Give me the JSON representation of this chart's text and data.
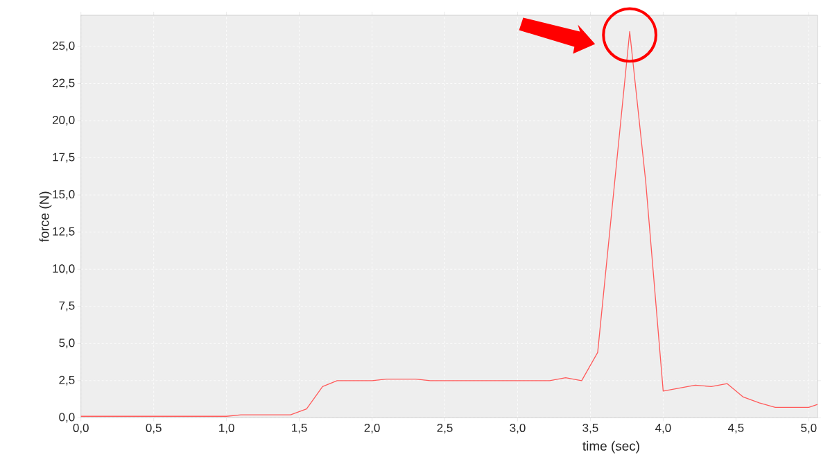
{
  "chart_data": {
    "type": "line",
    "xlabel": "time (sec)",
    "ylabel": "force (N)",
    "x": [
      0.0,
      1.0,
      1.1,
      1.44,
      1.55,
      1.66,
      1.76,
      2.0,
      2.1,
      2.3,
      2.4,
      3.22,
      3.33,
      3.44,
      3.55,
      3.77,
      3.88,
      4.0,
      4.22,
      4.33,
      4.44,
      4.55,
      4.66,
      4.77,
      5.0,
      5.06
    ],
    "series": [
      {
        "color": "#ff5a5a",
        "values": [
          0.1,
          0.1,
          0.2,
          0.2,
          0.6,
          2.1,
          2.5,
          2.5,
          2.6,
          2.6,
          2.5,
          2.5,
          2.7,
          2.5,
          4.4,
          26.0,
          15.9,
          1.8,
          2.2,
          2.1,
          2.3,
          1.4,
          1.0,
          0.7,
          0.7,
          0.9
        ]
      }
    ],
    "xlim": [
      0,
      5.06
    ],
    "ylim": [
      0,
      27.1
    ],
    "xticks": [
      {
        "value": 0,
        "label": "0,0"
      },
      {
        "value": 0.5,
        "label": "0,5"
      },
      {
        "value": 1,
        "label": "1,0"
      },
      {
        "value": 1.5,
        "label": "1,5"
      },
      {
        "value": 2,
        "label": "2,0"
      },
      {
        "value": 2.5,
        "label": "2,5"
      },
      {
        "value": 3,
        "label": "3,0"
      },
      {
        "value": 3.5,
        "label": "3,5"
      },
      {
        "value": 4,
        "label": "4,0"
      },
      {
        "value": 4.5,
        "label": "4,5"
      },
      {
        "value": 5,
        "label": "5,0"
      }
    ],
    "yticks": [
      {
        "value": 0,
        "label": "0,0"
      },
      {
        "value": 2.5,
        "label": "2,5"
      },
      {
        "value": 5,
        "label": "5,0"
      },
      {
        "value": 7.5,
        "label": "7,5"
      },
      {
        "value": 10,
        "label": "10,0"
      },
      {
        "value": 12.5,
        "label": "12,5"
      },
      {
        "value": 15,
        "label": "15,0"
      },
      {
        "value": 17.5,
        "label": "17,5"
      },
      {
        "value": 20,
        "label": "20,0"
      },
      {
        "value": 22.5,
        "label": "22,5"
      },
      {
        "value": 25,
        "label": "25,0"
      }
    ],
    "grid": true,
    "marker": "none",
    "line_style": "solid"
  }
}
